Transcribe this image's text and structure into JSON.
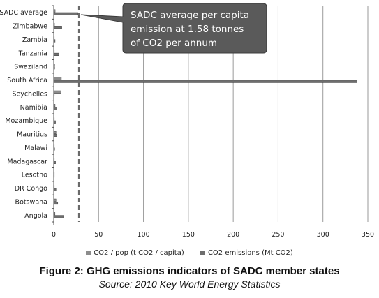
{
  "chart_data": {
    "type": "bar",
    "orientation": "horizontal",
    "categories": [
      "SADC average",
      "Zimbabwe",
      "Zambia",
      "Tanzania",
      "Swaziland",
      "South Africa",
      "Seychelles",
      "Namibia",
      "Mozambique",
      "Mauritius",
      "Malawi",
      "Madagascar",
      "Lesotho",
      "DR Congo",
      "Botswana",
      "Angola"
    ],
    "series": [
      {
        "name": "CO2 / pop (t CO2 / capita)",
        "color": "#8c8c8c",
        "values": [
          1.58,
          0.8,
          0.2,
          0.15,
          1.0,
          8.5,
          8.0,
          1.5,
          0.1,
          2.5,
          0.1,
          0.2,
          0.1,
          0.05,
          2.5,
          1.4
        ]
      },
      {
        "name": "CO2 emissions (Mt CO2)",
        "color": "#6e6e6e",
        "values": [
          27,
          9,
          1.5,
          6,
          1,
          338,
          0.6,
          3.5,
          2,
          3.5,
          1,
          2,
          0.3,
          2.5,
          4.5,
          11
        ]
      }
    ],
    "xlim": [
      0,
      350
    ],
    "xticks": [
      0,
      50,
      100,
      150,
      200,
      250,
      300,
      350
    ],
    "grid": true,
    "reference_line": {
      "value": 28
    },
    "legend_position": "bottom"
  },
  "callout": {
    "lines": [
      "SADC average per capita",
      "emission at 1.58 tonnes",
      "of CO2 per annum"
    ]
  },
  "caption": {
    "title": "Figure 2: GHG emissions indicators of SADC member states",
    "source": "Source: 2010 Key World Energy Statistics"
  },
  "colors": {
    "callout_fill": "#5a5a5a",
    "grid": "#9a9a9a",
    "dashed_line": "#6a6a6a"
  }
}
